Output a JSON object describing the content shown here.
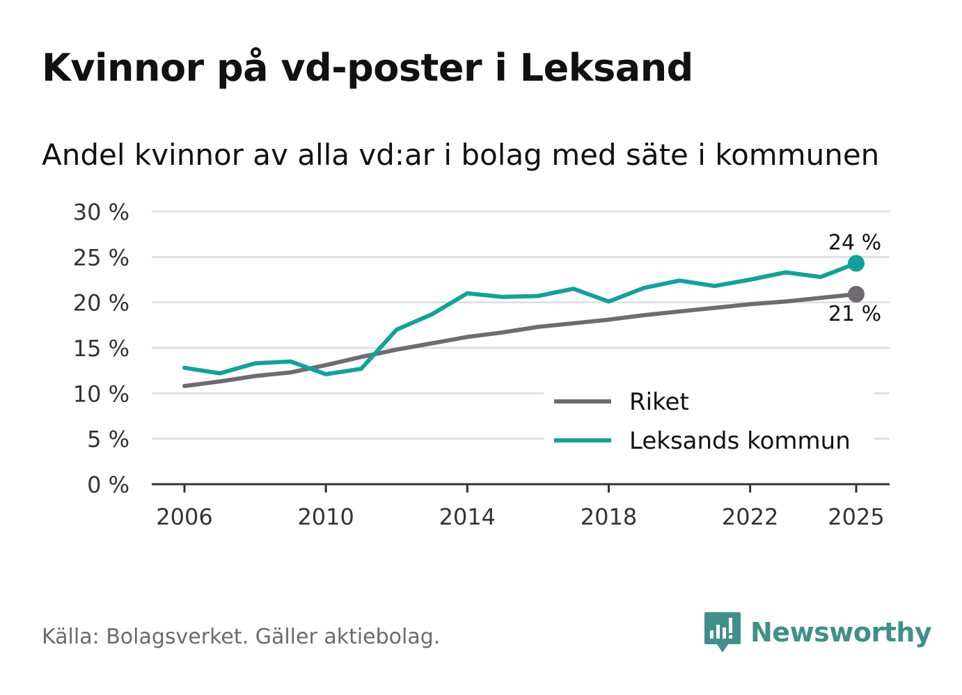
{
  "header": {
    "title": "Kvinnor på vd-poster i Leksand",
    "subtitle": "Andel kvinnor av alla vd:ar i bolag med säte i kommunen"
  },
  "footer": {
    "source": "Källa: Bolagsverket. Gäller aktiebolag.",
    "brand": "Newsworthy"
  },
  "colors": {
    "riket": "#6e6c72",
    "leksand": "#0fa39a",
    "grid": "#dddddd",
    "axis": "#333333",
    "brand": "#3f8f8a"
  },
  "chart_data": {
    "type": "line",
    "title": "Kvinnor på vd-poster i Leksand",
    "subtitle": "Andel kvinnor av alla vd:ar i bolag med säte i kommunen",
    "xlabel": "",
    "ylabel": "",
    "x": [
      2006,
      2007,
      2008,
      2009,
      2010,
      2011,
      2012,
      2013,
      2014,
      2015,
      2016,
      2017,
      2018,
      2019,
      2020,
      2021,
      2022,
      2023,
      2024,
      2025
    ],
    "x_ticks": [
      2006,
      2010,
      2014,
      2018,
      2022,
      2025
    ],
    "x_tick_labels": [
      "2006",
      "2010",
      "2014",
      "2018",
      "2022",
      "2025"
    ],
    "ylim": [
      0,
      30
    ],
    "y_ticks": [
      0,
      5,
      10,
      15,
      20,
      25,
      30
    ],
    "y_tick_labels": [
      "0 %",
      "5 %",
      "10 %",
      "15 %",
      "20 %",
      "25 %",
      "30 %"
    ],
    "grid": true,
    "legend_position": "bottom-right",
    "series": [
      {
        "name": "Riket",
        "color": "#6e6c72",
        "values": [
          10.8,
          11.3,
          11.9,
          12.3,
          13.1,
          14.0,
          14.8,
          15.5,
          16.2,
          16.7,
          17.3,
          17.7,
          18.1,
          18.6,
          19.0,
          19.4,
          19.8,
          20.1,
          20.5,
          20.9
        ],
        "end_label": "21 %"
      },
      {
        "name": "Leksands kommun",
        "color": "#0fa39a",
        "values": [
          12.8,
          12.2,
          13.3,
          13.5,
          12.1,
          12.7,
          17.0,
          18.7,
          21.0,
          20.6,
          20.7,
          21.5,
          20.1,
          21.6,
          22.4,
          21.8,
          22.5,
          23.3,
          22.8,
          24.3
        ],
        "end_label": "24 %"
      }
    ]
  }
}
